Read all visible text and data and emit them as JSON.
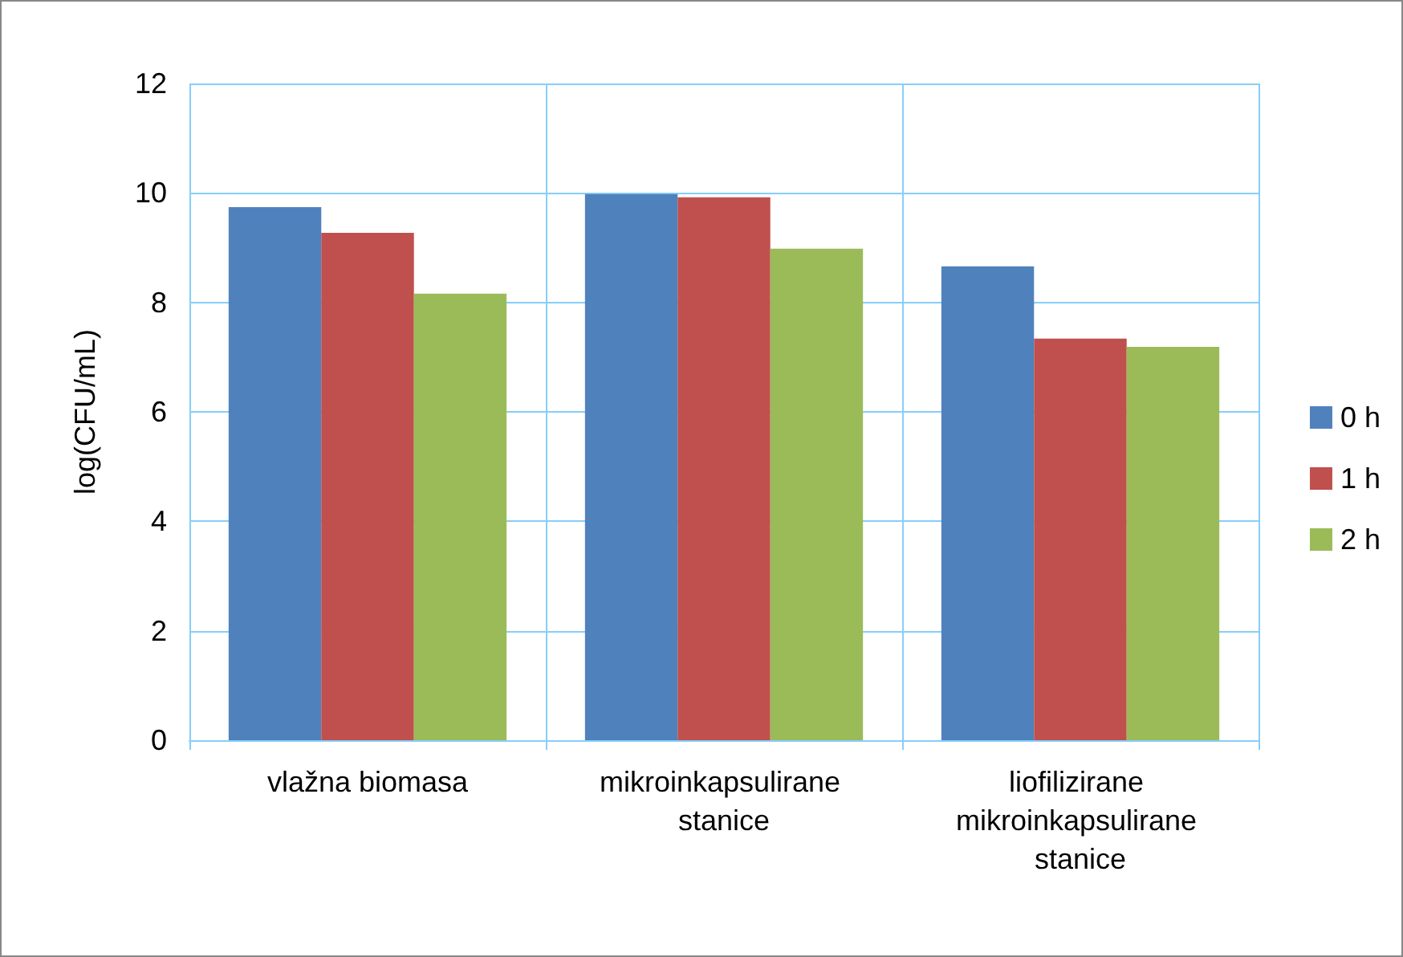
{
  "chart_data": {
    "type": "bar",
    "ylabel": "log(CFU/mL)",
    "categories": [
      "vlažna biomasa",
      "mikroinkapsulirane stanice",
      "liofilizirane mikroinkapsulirane stanice"
    ],
    "series": [
      {
        "name": "0 h",
        "color": "#4f81bd",
        "values": [
          9.74,
          9.98,
          8.66
        ]
      },
      {
        "name": "1 h",
        "color": "#c0504d",
        "values": [
          9.27,
          9.92,
          7.34
        ]
      },
      {
        "name": "2 h",
        "color": "#9bbb59",
        "values": [
          8.16,
          8.98,
          7.19
        ]
      }
    ],
    "ylim": [
      0,
      12
    ],
    "yticks": [
      0,
      2,
      4,
      6,
      8,
      10,
      12
    ],
    "grid": true,
    "legend": "right"
  }
}
